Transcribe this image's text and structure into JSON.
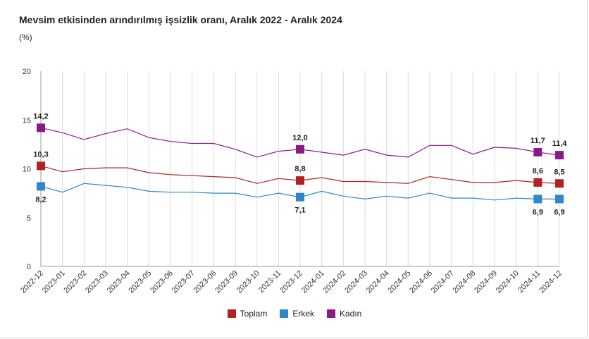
{
  "title": "Mevsim etkisinden arındırılmış işsizlik oranı, Aralık 2022 - Aralık 2024",
  "unit": "(%)",
  "chart_data": {
    "type": "line",
    "title": "Mevsim etkisinden arındırılmış işsizlik oranı, Aralık 2022 - Aralık 2024",
    "ylabel": "(%)",
    "ylim": [
      0,
      20
    ],
    "yticks": [
      0,
      5,
      10,
      15,
      20
    ],
    "grid": "vertical",
    "legend": "bottom",
    "categories": [
      "2022-12",
      "2023-01",
      "2023-02",
      "2023-03",
      "2023-04",
      "2023-05",
      "2023-06",
      "2023-07",
      "2023-08",
      "2023-09",
      "2023-10",
      "2023-11",
      "2023-12",
      "2024-01",
      "2024-02",
      "2024-03",
      "2024-04",
      "2024-05",
      "2024-06",
      "2024-07",
      "2024-08",
      "2024-09",
      "2024-10",
      "2024-11",
      "2024-12"
    ],
    "series": [
      {
        "name": "Toplam",
        "color": "#b22222",
        "values": [
          10.3,
          9.7,
          10.0,
          10.1,
          10.1,
          9.6,
          9.4,
          9.3,
          9.2,
          9.1,
          8.5,
          9.0,
          8.8,
          9.1,
          8.7,
          8.7,
          8.6,
          8.5,
          9.2,
          8.9,
          8.6,
          8.6,
          8.8,
          8.6,
          8.5
        ],
        "labels": {
          "0": "10,3",
          "12": "8,8",
          "23": "8,6",
          "24": "8,5"
        }
      },
      {
        "name": "Erkek",
        "color": "#2f86c8",
        "values": [
          8.2,
          7.6,
          8.5,
          8.3,
          8.1,
          7.7,
          7.6,
          7.6,
          7.5,
          7.5,
          7.1,
          7.5,
          7.1,
          7.7,
          7.2,
          6.9,
          7.2,
          7.0,
          7.5,
          7.0,
          7.0,
          6.8,
          7.0,
          6.9,
          6.9
        ],
        "labels": {
          "0": "8,2",
          "12": "7,1",
          "23": "6,9",
          "24": "6,9"
        }
      },
      {
        "name": "Kadın",
        "color": "#8b1a89",
        "values": [
          14.2,
          13.7,
          13.0,
          13.6,
          14.1,
          13.2,
          12.8,
          12.6,
          12.6,
          12.0,
          11.2,
          11.8,
          12.0,
          11.7,
          11.4,
          12.0,
          11.4,
          11.2,
          12.4,
          12.4,
          11.5,
          12.2,
          12.1,
          11.7,
          11.4
        ],
        "labels": {
          "0": "14,2",
          "12": "12,0",
          "23": "11,7",
          "24": "11,4"
        }
      }
    ],
    "markers_at": [
      0,
      12,
      23,
      24
    ]
  }
}
